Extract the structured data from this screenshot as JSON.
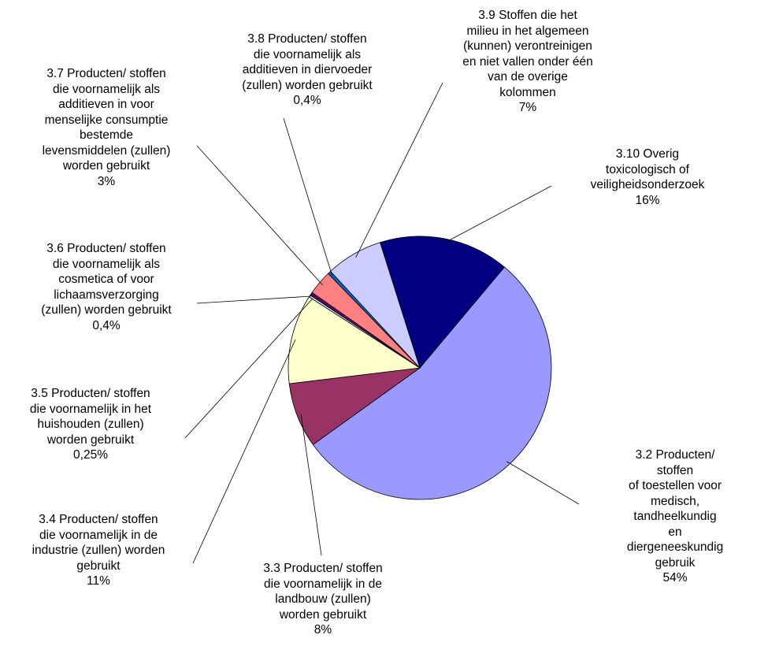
{
  "chart_data": {
    "type": "pie",
    "categories": [
      "3.2    Producten/ stoffen\nof toestellen voor\nmedisch, tandheelkundig\nen diergeneeskundig\ngebruik",
      "3.3    Producten/ stoffen\ndie voornamelijk in de\nlandbouw (zullen)\nworden gebruikt",
      "3.4  Producten/ stoffen\ndie voornamelijk in de\nindustrie (zullen) worden\ngebruikt",
      "3.5  Producten/ stoffen\ndie voornamelijk in het\nhuishouden (zullen)\nworden gebruikt",
      "3.6  Producten/ stoffen\ndie voornamelijk als\ncosmetica of voor\nlichaamsverzorging\n(zullen) worden gebruikt",
      "3.7    Producten/ stoffen\ndie voornamelijk als\nadditieven in voor\nmenselijke consumptie\nbestemde\nlevensmiddelen (zullen)\nworden gebruikt",
      "3.8    Producten/ stoffen\ndie voornamelijk als\nadditieven in diervoeder\n(zullen) worden gebruikt",
      "3.9   Stoffen die het\nmilieu in het algemeen\n(kunnen) verontreinigen\nen niet vallen onder één\nvan de overige\nkolommen",
      "3.10    Overig\ntoxicologisch of\nveiligheidsonderzoek"
    ],
    "values": [
      54,
      8,
      11,
      0.25,
      0.4,
      3,
      0.4,
      7,
      16
    ],
    "value_labels": [
      "54%",
      "8%",
      "11%",
      "0,25%",
      "0,4%",
      "3%",
      "0,4%",
      "7%",
      "16%"
    ],
    "colors": [
      "#9999ff",
      "#993366",
      "#ffffcc",
      "#ccffff",
      "#660066",
      "#ff8080",
      "#0066cc",
      "#ccccff",
      "#000080"
    ]
  }
}
